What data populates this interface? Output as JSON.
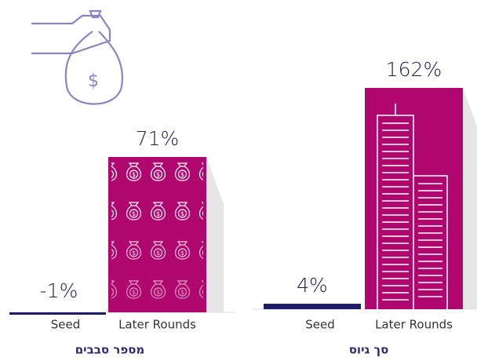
{
  "chart_data": [
    {
      "type": "bar",
      "title": "מספר סבבים",
      "categories": [
        "Seed",
        "Later Rounds"
      ],
      "values": [
        -1,
        71
      ],
      "value_labels": [
        "-1%",
        "71%"
      ],
      "colors": [
        "#1f1a6b",
        "#b0076f"
      ]
    },
    {
      "type": "bar",
      "title": "סך גיוס",
      "categories": [
        "Seed",
        "Later Rounds"
      ],
      "values": [
        4,
        162
      ],
      "value_labels": [
        "4%",
        "162%"
      ],
      "colors": [
        "#1f1a6b",
        "#b0076f"
      ]
    }
  ]
}
